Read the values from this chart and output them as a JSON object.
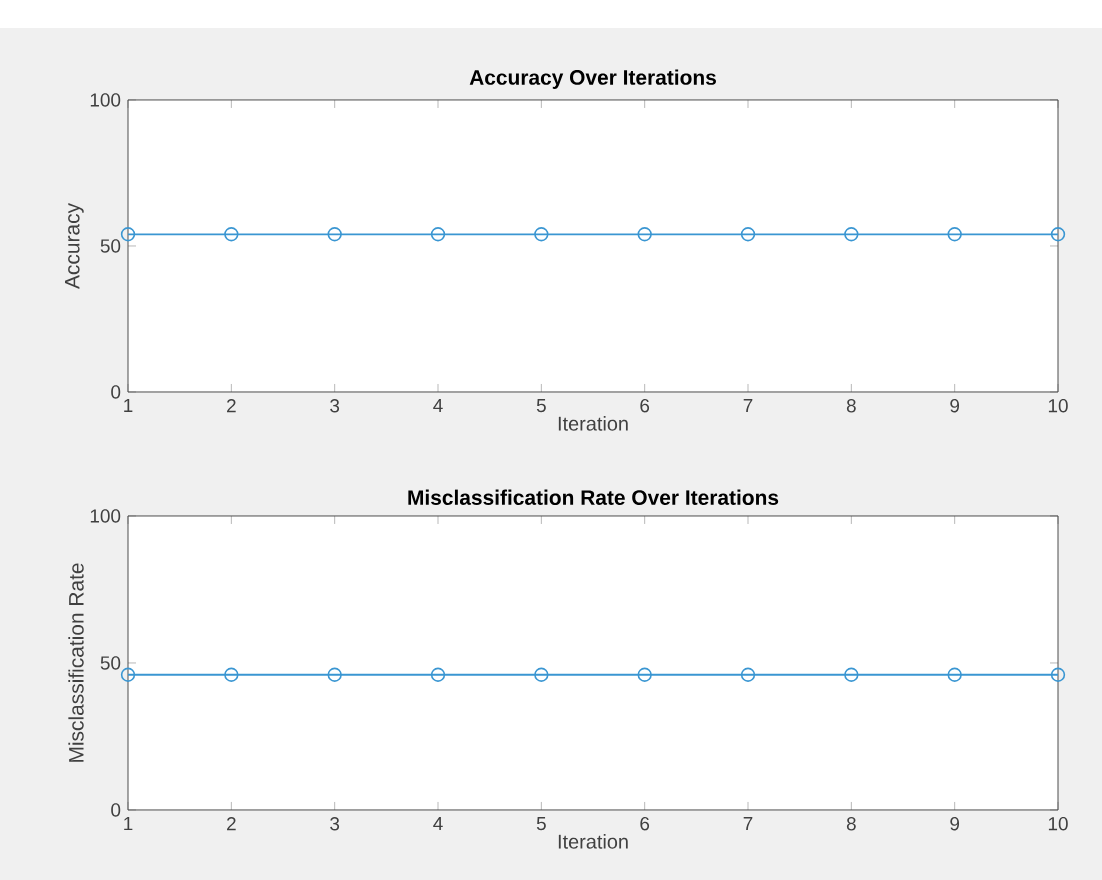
{
  "chart_data": [
    {
      "type": "line",
      "title": "Accuracy Over Iterations",
      "xlabel": "Iteration",
      "ylabel": "Accuracy",
      "x": [
        1,
        2,
        3,
        4,
        5,
        6,
        7,
        8,
        9,
        10
      ],
      "values": [
        54,
        54,
        54,
        54,
        54,
        54,
        54,
        54,
        54,
        54
      ],
      "color": "#3a96d2",
      "marker": "circle",
      "xlim": [
        1,
        10
      ],
      "xticks": [
        1,
        2,
        3,
        4,
        5,
        6,
        7,
        8,
        9,
        10
      ],
      "ylim": [
        0,
        100
      ],
      "yticks": [
        0,
        50,
        100
      ]
    },
    {
      "type": "line",
      "title": "Misclassification Rate Over Iterations",
      "xlabel": "Iteration",
      "ylabel": "Misclassification Rate",
      "x": [
        1,
        2,
        3,
        4,
        5,
        6,
        7,
        8,
        9,
        10
      ],
      "values": [
        46,
        46,
        46,
        46,
        46,
        46,
        46,
        46,
        46,
        46
      ],
      "color": "#3a96d2",
      "marker": "circle",
      "xlim": [
        1,
        10
      ],
      "xticks": [
        1,
        2,
        3,
        4,
        5,
        6,
        7,
        8,
        9,
        10
      ],
      "ylim": [
        0,
        100
      ],
      "yticks": [
        0,
        50,
        100
      ]
    }
  ]
}
